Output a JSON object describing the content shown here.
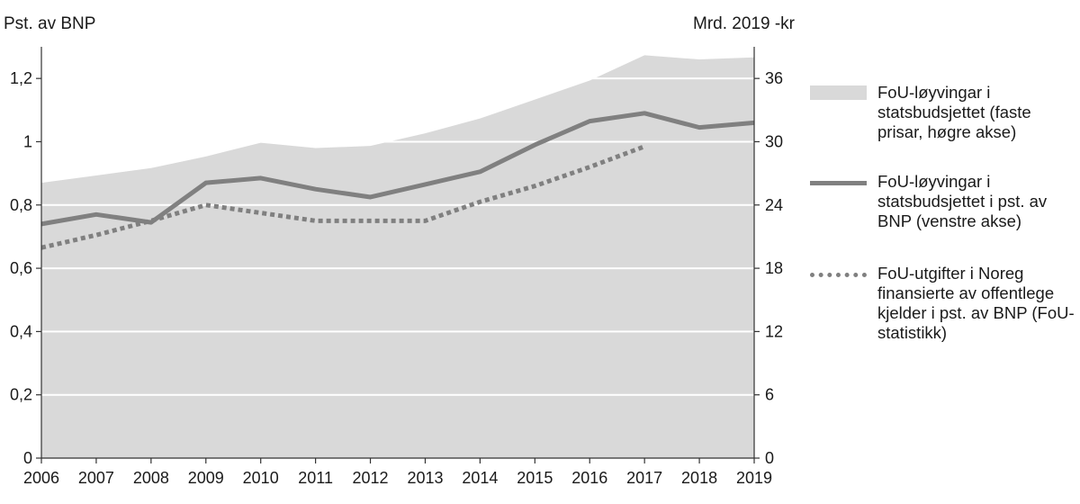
{
  "chart_data": {
    "type": "line",
    "title": "",
    "left_axis_title": "Pst. av BNP",
    "right_axis_title": "Mrd. 2019 -kr",
    "x": [
      "2006",
      "2007",
      "2008",
      "2009",
      "2010",
      "2011",
      "2012",
      "2013",
      "2014",
      "2015",
      "2016",
      "2017",
      "2018",
      "2019"
    ],
    "y_left_lim": [
      0,
      1.3
    ],
    "y_left_ticks": [
      "0",
      "0,2",
      "0,4",
      "0,6",
      "0,8",
      "1",
      "1,2"
    ],
    "y_right_lim": [
      0,
      39
    ],
    "y_right_ticks": [
      "0",
      "6",
      "12",
      "18",
      "24",
      "30",
      "36"
    ],
    "grid": true,
    "legend_position": "right",
    "series": [
      {
        "name": "FoU-løyvingar i statsbudsjettet (faste prisar, høgre akse)",
        "axis": "right",
        "kind": "area",
        "color": "#d9d9d9",
        "values": [
          26.1,
          26.8,
          27.5,
          28.6,
          29.9,
          29.4,
          29.6,
          30.8,
          32.2,
          34.0,
          35.8,
          38.2,
          37.8,
          38.0
        ]
      },
      {
        "name": "FoU-løyvingar i statsbudsjettet i pst. av BNP (venstre akse)",
        "axis": "left",
        "kind": "line",
        "color": "#808080",
        "values": [
          0.74,
          0.77,
          0.745,
          0.87,
          0.885,
          0.85,
          0.825,
          0.865,
          0.905,
          0.99,
          1.065,
          1.09,
          1.045,
          1.06
        ]
      },
      {
        "name": "FoU-utgifter i Noreg finansierte av offentlege kjelder i pst. av BNP (FoU-statistikk)",
        "axis": "left",
        "kind": "dotted-line",
        "color": "#808080",
        "values": [
          0.665,
          0.705,
          0.75,
          0.8,
          0.775,
          0.75,
          0.75,
          0.75,
          0.81,
          0.86,
          0.92,
          0.985,
          null,
          null
        ]
      }
    ]
  },
  "legend": {
    "items": [
      "FoU-løyvingar i\nstatsbudsjettet (faste\nprisar, høgre akse)",
      "FoU-løyvingar i\nstatsbudsjettet i pst. av\nBNP (venstre akse)",
      "FoU-utgifter i Noreg\nfinansierte av offentlege\nkjelder i pst. av BNP (FoU-\nstatistikk)"
    ]
  }
}
